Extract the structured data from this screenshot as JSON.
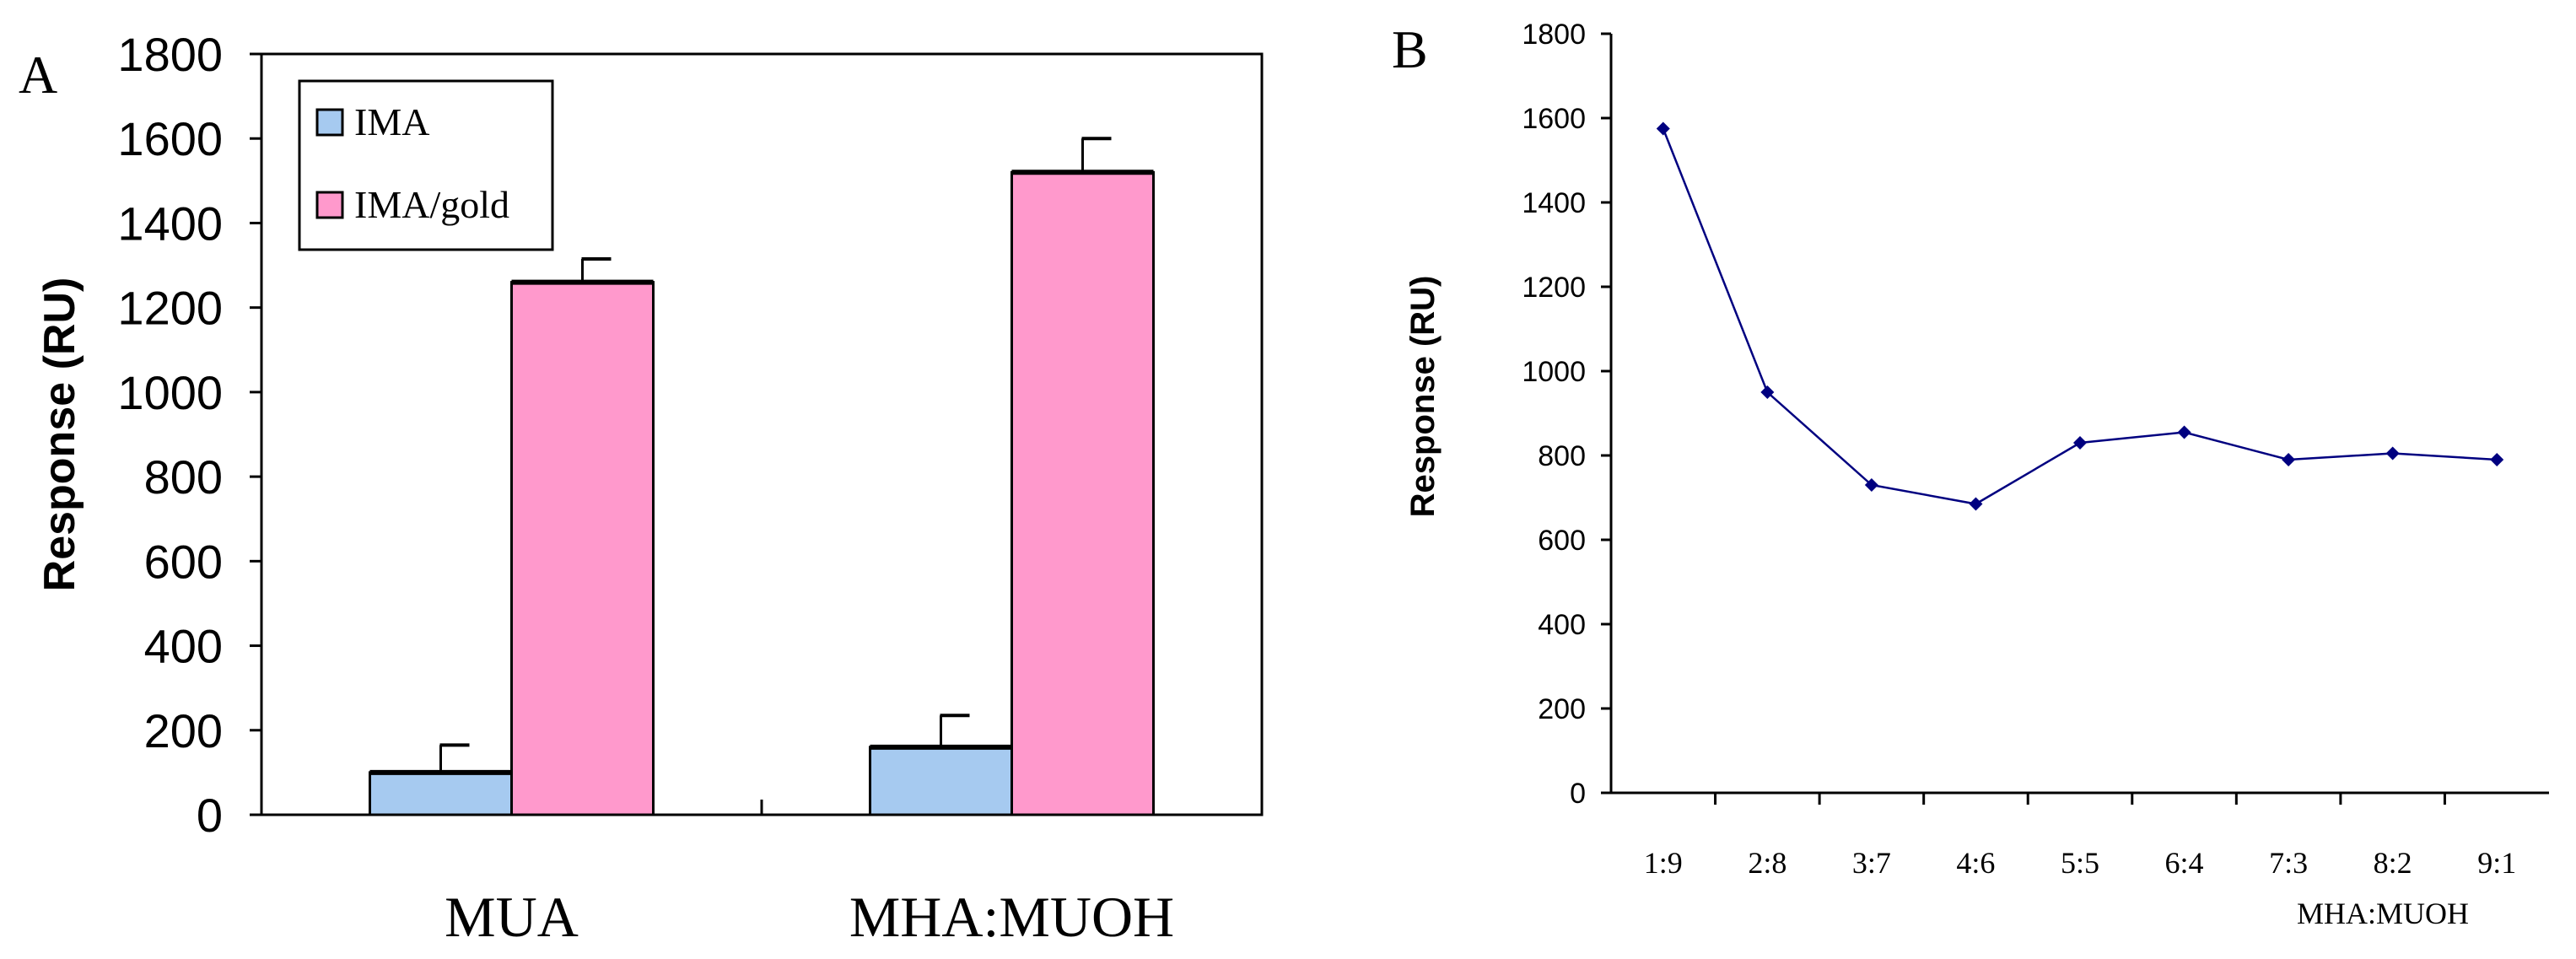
{
  "chart_data": [
    {
      "panel_label": "A",
      "type": "bar",
      "title": "",
      "xlabel": "",
      "ylabel": "Response (RU)",
      "ylim": [
        0,
        1800
      ],
      "yticks": [
        "0",
        "200",
        "400",
        "600",
        "800",
        "1000",
        "1200",
        "1400",
        "1600",
        "1800"
      ],
      "categories": [
        "MUA",
        "MHA:MUOH"
      ],
      "series": [
        {
          "name": "IMA",
          "color": "#a6caf0",
          "values": [
            100,
            160
          ],
          "errors": [
            65,
            75
          ]
        },
        {
          "name": "IMA/gold",
          "color": "#ff99cc",
          "values": [
            1260,
            1520
          ],
          "errors": [
            55,
            80
          ]
        }
      ],
      "legend": "top-left"
    },
    {
      "panel_label": "B",
      "type": "line",
      "title": "",
      "xlabel": "MHA:MUOH",
      "ylabel": "Response (RU)",
      "ylim": [
        0,
        1800
      ],
      "yticks": [
        "0",
        "200",
        "400",
        "600",
        "800",
        "1000",
        "1200",
        "1400",
        "1600",
        "1800"
      ],
      "categories": [
        "1:9",
        "2:8",
        "3:7",
        "4:6",
        "5:5",
        "6:4",
        "7:3",
        "8:2",
        "9:1"
      ],
      "series": [
        {
          "name": "Response",
          "color": "#000080",
          "values": [
            1575,
            950,
            730,
            685,
            830,
            855,
            790,
            805,
            790
          ]
        }
      ]
    }
  ]
}
